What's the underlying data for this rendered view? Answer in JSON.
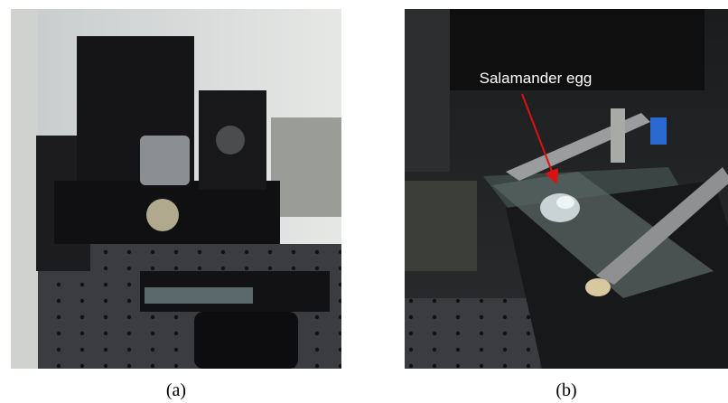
{
  "panels": [
    {
      "label": "(a)"
    },
    {
      "label": "(b)",
      "annotation": "Salamander egg"
    }
  ]
}
